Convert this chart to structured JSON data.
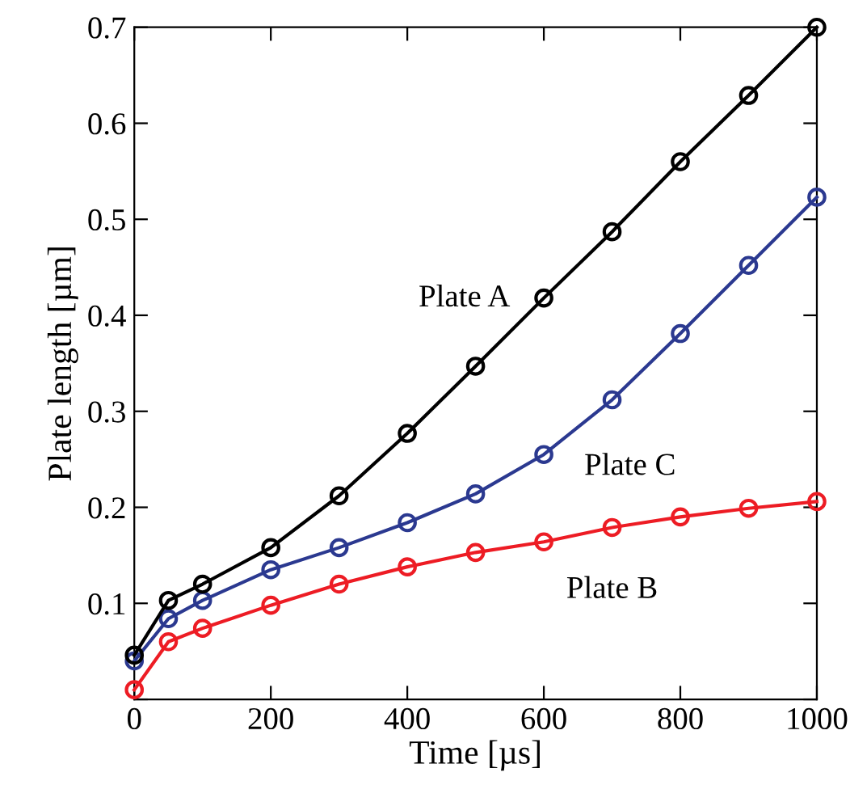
{
  "chart_data": {
    "type": "line",
    "xlabel": "Time [µs]",
    "ylabel": "Plate length [µm]",
    "x": [
      0,
      50,
      100,
      200,
      300,
      400,
      500,
      600,
      700,
      800,
      900,
      1000
    ],
    "series": [
      {
        "name": "Plate A",
        "color": "#000000",
        "values": [
          0.046,
          0.103,
          0.12,
          0.158,
          0.212,
          0.277,
          0.347,
          0.418,
          0.487,
          0.56,
          0.629,
          0.7
        ]
      },
      {
        "name": "Plate C",
        "color": "#2b3990",
        "values": [
          0.04,
          0.084,
          0.103,
          0.135,
          0.158,
          0.184,
          0.214,
          0.255,
          0.312,
          0.381,
          0.452,
          0.523
        ]
      },
      {
        "name": "Plate B",
        "color": "#ed1c24",
        "values": [
          0.01,
          0.06,
          0.074,
          0.098,
          0.12,
          0.138,
          0.153,
          0.164,
          0.179,
          0.19,
          0.199,
          0.206
        ]
      }
    ],
    "xlim": [
      0,
      1000
    ],
    "xticks": [
      0,
      200,
      400,
      600,
      800,
      1000
    ],
    "ylim": [
      0,
      0.7
    ],
    "yticks": [
      {
        "value": 0,
        "label": null
      },
      0.1,
      0.2,
      0.3,
      0.4,
      0.5,
      0.6,
      0.7
    ],
    "marker": "circle",
    "line_style": "solid",
    "grid": false,
    "legend": false
  }
}
